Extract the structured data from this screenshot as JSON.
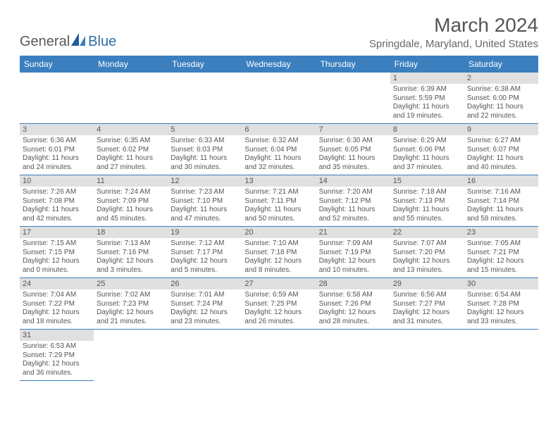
{
  "logo": {
    "word1": "General",
    "word2": "Blue"
  },
  "title": "March 2024",
  "location": "Springdale, Maryland, United States",
  "colors": {
    "header_bg": "#3b7fbf",
    "header_text": "#ffffff",
    "daynum_bg": "#e0e0e0",
    "border": "#3b7fbf",
    "text": "#555555",
    "logo_gray": "#5a5a5a",
    "logo_blue": "#2f6fa8"
  },
  "weekdays": [
    "Sunday",
    "Monday",
    "Tuesday",
    "Wednesday",
    "Thursday",
    "Friday",
    "Saturday"
  ],
  "days": {
    "1": {
      "sr": "Sunrise: 6:39 AM",
      "ss": "Sunset: 5:59 PM",
      "d1": "Daylight: 11 hours",
      "d2": "and 19 minutes."
    },
    "2": {
      "sr": "Sunrise: 6:38 AM",
      "ss": "Sunset: 6:00 PM",
      "d1": "Daylight: 11 hours",
      "d2": "and 22 minutes."
    },
    "3": {
      "sr": "Sunrise: 6:36 AM",
      "ss": "Sunset: 6:01 PM",
      "d1": "Daylight: 11 hours",
      "d2": "and 24 minutes."
    },
    "4": {
      "sr": "Sunrise: 6:35 AM",
      "ss": "Sunset: 6:02 PM",
      "d1": "Daylight: 11 hours",
      "d2": "and 27 minutes."
    },
    "5": {
      "sr": "Sunrise: 6:33 AM",
      "ss": "Sunset: 6:03 PM",
      "d1": "Daylight: 11 hours",
      "d2": "and 30 minutes."
    },
    "6": {
      "sr": "Sunrise: 6:32 AM",
      "ss": "Sunset: 6:04 PM",
      "d1": "Daylight: 11 hours",
      "d2": "and 32 minutes."
    },
    "7": {
      "sr": "Sunrise: 6:30 AM",
      "ss": "Sunset: 6:05 PM",
      "d1": "Daylight: 11 hours",
      "d2": "and 35 minutes."
    },
    "8": {
      "sr": "Sunrise: 6:29 AM",
      "ss": "Sunset: 6:06 PM",
      "d1": "Daylight: 11 hours",
      "d2": "and 37 minutes."
    },
    "9": {
      "sr": "Sunrise: 6:27 AM",
      "ss": "Sunset: 6:07 PM",
      "d1": "Daylight: 11 hours",
      "d2": "and 40 minutes."
    },
    "10": {
      "sr": "Sunrise: 7:26 AM",
      "ss": "Sunset: 7:08 PM",
      "d1": "Daylight: 11 hours",
      "d2": "and 42 minutes."
    },
    "11": {
      "sr": "Sunrise: 7:24 AM",
      "ss": "Sunset: 7:09 PM",
      "d1": "Daylight: 11 hours",
      "d2": "and 45 minutes."
    },
    "12": {
      "sr": "Sunrise: 7:23 AM",
      "ss": "Sunset: 7:10 PM",
      "d1": "Daylight: 11 hours",
      "d2": "and 47 minutes."
    },
    "13": {
      "sr": "Sunrise: 7:21 AM",
      "ss": "Sunset: 7:11 PM",
      "d1": "Daylight: 11 hours",
      "d2": "and 50 minutes."
    },
    "14": {
      "sr": "Sunrise: 7:20 AM",
      "ss": "Sunset: 7:12 PM",
      "d1": "Daylight: 11 hours",
      "d2": "and 52 minutes."
    },
    "15": {
      "sr": "Sunrise: 7:18 AM",
      "ss": "Sunset: 7:13 PM",
      "d1": "Daylight: 11 hours",
      "d2": "and 55 minutes."
    },
    "16": {
      "sr": "Sunrise: 7:16 AM",
      "ss": "Sunset: 7:14 PM",
      "d1": "Daylight: 11 hours",
      "d2": "and 58 minutes."
    },
    "17": {
      "sr": "Sunrise: 7:15 AM",
      "ss": "Sunset: 7:15 PM",
      "d1": "Daylight: 12 hours",
      "d2": "and 0 minutes."
    },
    "18": {
      "sr": "Sunrise: 7:13 AM",
      "ss": "Sunset: 7:16 PM",
      "d1": "Daylight: 12 hours",
      "d2": "and 3 minutes."
    },
    "19": {
      "sr": "Sunrise: 7:12 AM",
      "ss": "Sunset: 7:17 PM",
      "d1": "Daylight: 12 hours",
      "d2": "and 5 minutes."
    },
    "20": {
      "sr": "Sunrise: 7:10 AM",
      "ss": "Sunset: 7:18 PM",
      "d1": "Daylight: 12 hours",
      "d2": "and 8 minutes."
    },
    "21": {
      "sr": "Sunrise: 7:09 AM",
      "ss": "Sunset: 7:19 PM",
      "d1": "Daylight: 12 hours",
      "d2": "and 10 minutes."
    },
    "22": {
      "sr": "Sunrise: 7:07 AM",
      "ss": "Sunset: 7:20 PM",
      "d1": "Daylight: 12 hours",
      "d2": "and 13 minutes."
    },
    "23": {
      "sr": "Sunrise: 7:05 AM",
      "ss": "Sunset: 7:21 PM",
      "d1": "Daylight: 12 hours",
      "d2": "and 15 minutes."
    },
    "24": {
      "sr": "Sunrise: 7:04 AM",
      "ss": "Sunset: 7:22 PM",
      "d1": "Daylight: 12 hours",
      "d2": "and 18 minutes."
    },
    "25": {
      "sr": "Sunrise: 7:02 AM",
      "ss": "Sunset: 7:23 PM",
      "d1": "Daylight: 12 hours",
      "d2": "and 21 minutes."
    },
    "26": {
      "sr": "Sunrise: 7:01 AM",
      "ss": "Sunset: 7:24 PM",
      "d1": "Daylight: 12 hours",
      "d2": "and 23 minutes."
    },
    "27": {
      "sr": "Sunrise: 6:59 AM",
      "ss": "Sunset: 7:25 PM",
      "d1": "Daylight: 12 hours",
      "d2": "and 26 minutes."
    },
    "28": {
      "sr": "Sunrise: 6:58 AM",
      "ss": "Sunset: 7:26 PM",
      "d1": "Daylight: 12 hours",
      "d2": "and 28 minutes."
    },
    "29": {
      "sr": "Sunrise: 6:56 AM",
      "ss": "Sunset: 7:27 PM",
      "d1": "Daylight: 12 hours",
      "d2": "and 31 minutes."
    },
    "30": {
      "sr": "Sunrise: 6:54 AM",
      "ss": "Sunset: 7:28 PM",
      "d1": "Daylight: 12 hours",
      "d2": "and 33 minutes."
    },
    "31": {
      "sr": "Sunrise: 6:53 AM",
      "ss": "Sunset: 7:29 PM",
      "d1": "Daylight: 12 hours",
      "d2": "and 36 minutes."
    }
  },
  "grid": [
    [
      null,
      null,
      null,
      null,
      null,
      "1",
      "2"
    ],
    [
      "3",
      "4",
      "5",
      "6",
      "7",
      "8",
      "9"
    ],
    [
      "10",
      "11",
      "12",
      "13",
      "14",
      "15",
      "16"
    ],
    [
      "17",
      "18",
      "19",
      "20",
      "21",
      "22",
      "23"
    ],
    [
      "24",
      "25",
      "26",
      "27",
      "28",
      "29",
      "30"
    ],
    [
      "31",
      null,
      null,
      null,
      null,
      null,
      null
    ]
  ]
}
